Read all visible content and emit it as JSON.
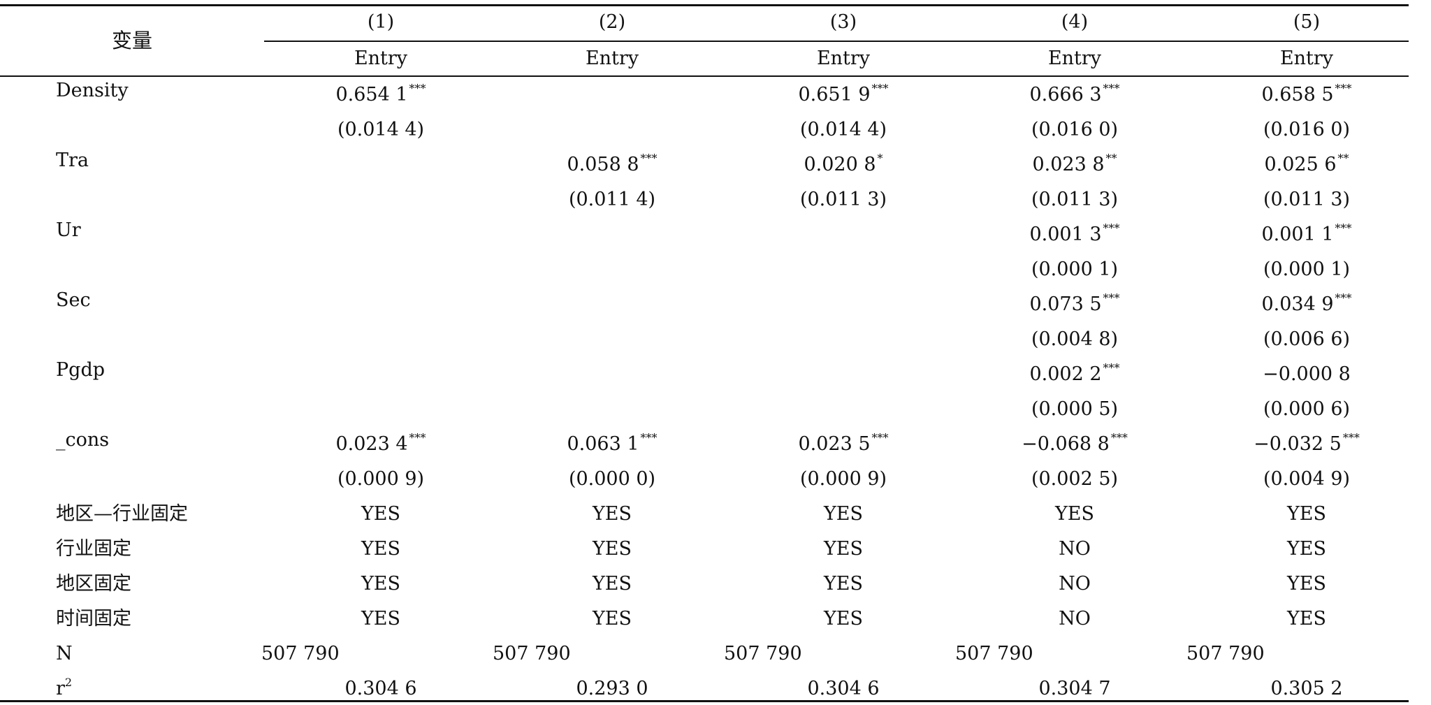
{
  "header": {
    "var_label": "变量",
    "col_numbers": [
      "(1)",
      "(2)",
      "(3)",
      "(4)",
      "(5)"
    ],
    "dep_var": [
      "Entry",
      "Entry",
      "Entry",
      "Entry",
      "Entry"
    ]
  },
  "rows": [
    {
      "label": "Density",
      "coef": [
        {
          "v": "0.654 1",
          "s": "***"
        },
        {
          "v": "",
          "s": ""
        },
        {
          "v": "0.651 9",
          "s": "***"
        },
        {
          "v": "0.666 3",
          "s": "***"
        },
        {
          "v": "0.658 5",
          "s": "***"
        }
      ],
      "se": [
        "(0.014 4)",
        "",
        "(0.014 4)",
        "(0.016 0)",
        "(0.016 0)"
      ]
    },
    {
      "label": "Tra",
      "coef": [
        {
          "v": "",
          "s": ""
        },
        {
          "v": "0.058 8",
          "s": "***"
        },
        {
          "v": "0.020 8",
          "s": "*"
        },
        {
          "v": "0.023 8",
          "s": "**"
        },
        {
          "v": "0.025 6",
          "s": "**"
        }
      ],
      "se": [
        "",
        "(0.011 4)",
        "(0.011 3)",
        "(0.011 3)",
        "(0.011 3)"
      ]
    },
    {
      "label": "Ur",
      "coef": [
        {
          "v": "",
          "s": ""
        },
        {
          "v": "",
          "s": ""
        },
        {
          "v": "",
          "s": ""
        },
        {
          "v": "0.001 3",
          "s": "***"
        },
        {
          "v": "0.001 1",
          "s": "***"
        }
      ],
      "se": [
        "",
        "",
        "",
        "(0.000 1)",
        "(0.000 1)"
      ]
    },
    {
      "label": "Sec",
      "coef": [
        {
          "v": "",
          "s": ""
        },
        {
          "v": "",
          "s": ""
        },
        {
          "v": "",
          "s": ""
        },
        {
          "v": "0.073 5",
          "s": "***"
        },
        {
          "v": "0.034 9",
          "s": "***"
        }
      ],
      "se": [
        "",
        "",
        "",
        "(0.004 8)",
        "(0.006 6)"
      ]
    },
    {
      "label": "Pgdp",
      "coef": [
        {
          "v": "",
          "s": ""
        },
        {
          "v": "",
          "s": ""
        },
        {
          "v": "",
          "s": ""
        },
        {
          "v": "0.002 2",
          "s": "***"
        },
        {
          "v": "−0.000 8",
          "s": ""
        }
      ],
      "se": [
        "",
        "",
        "",
        "(0.000 5)",
        "(0.000 6)"
      ]
    },
    {
      "label": "_cons",
      "coef": [
        {
          "v": "0.023 4",
          "s": "***"
        },
        {
          "v": "0.063 1",
          "s": "***"
        },
        {
          "v": "0.023 5",
          "s": "***"
        },
        {
          "v": "−0.068 8",
          "s": "***"
        },
        {
          "v": "−0.032 5",
          "s": "***"
        }
      ],
      "se": [
        "(0.000 9)",
        "(0.000 0)",
        "(0.000 9)",
        "(0.002 5)",
        "(0.004 9)"
      ]
    }
  ],
  "fixed_effects": [
    {
      "label": "地区—行业固定",
      "values": [
        "YES",
        "YES",
        "YES",
        "YES",
        "YES"
      ]
    },
    {
      "label": "行业固定",
      "values": [
        "YES",
        "YES",
        "YES",
        "NO",
        "YES"
      ]
    },
    {
      "label": "地区固定",
      "values": [
        "YES",
        "YES",
        "YES",
        "NO",
        "YES"
      ]
    },
    {
      "label": "时间固定",
      "values": [
        "YES",
        "YES",
        "YES",
        "NO",
        "YES"
      ]
    }
  ],
  "n_row": {
    "label": "N",
    "values": [
      "507 790",
      "507 790",
      "507 790",
      "507 790",
      "507 790"
    ]
  },
  "r2_row": {
    "label": "r",
    "label_sup": "2",
    "values": [
      "0.304 6",
      "0.293 0",
      "0.304 6",
      "0.304 7",
      "0.305 2"
    ]
  }
}
